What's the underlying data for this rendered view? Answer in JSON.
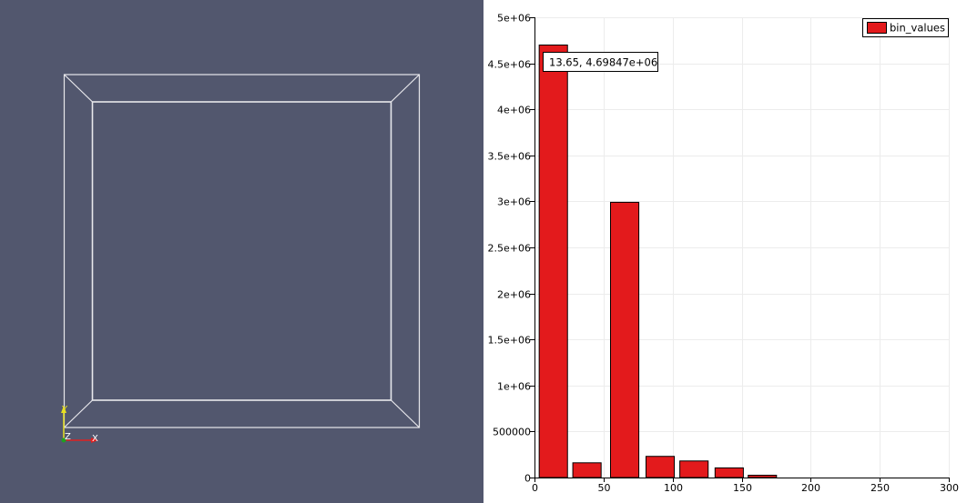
{
  "render_view": {
    "background": "#52576e",
    "outline_color": "#ffffff",
    "axes_labels": {
      "y": "Y",
      "z": "Z",
      "x": "X"
    },
    "axes_colors": {
      "x": "#e02020",
      "y": "#e8e020",
      "z": "#20a020"
    }
  },
  "chart_view": {
    "chart_data": {
      "type": "bar",
      "x": [
        13.65,
        38.0,
        65.3,
        91.0,
        115.5,
        141.0,
        165.0
      ],
      "series": [
        {
          "name": "bin_values",
          "color": "#e31a1c",
          "values": [
            4698470,
            160000,
            2990000,
            230000,
            180000,
            105000,
            25000
          ]
        }
      ],
      "xlim": [
        0,
        300
      ],
      "ylim": [
        0,
        5000000
      ],
      "x_ticks": [
        0,
        50,
        100,
        150,
        200,
        250,
        300
      ],
      "y_ticks": [
        0,
        500000,
        1000000,
        1500000,
        2000000,
        2500000,
        3000000,
        3500000,
        4000000,
        4500000,
        5000000
      ],
      "x_tick_labels": [
        "0",
        "50",
        "100",
        "150",
        "200",
        "250",
        "300"
      ],
      "y_tick_labels": [
        "0",
        "500000",
        "1e+06",
        "1.5e+06",
        "2e+06",
        "2.5e+06",
        "3e+06",
        "3.5e+06",
        "4e+06",
        "4.5e+06",
        "5e+06"
      ],
      "grid": true,
      "legend_placement": "top-right",
      "bar_width_data": 20.5,
      "tooltip": "13.65, 4.69847e+06"
    }
  }
}
